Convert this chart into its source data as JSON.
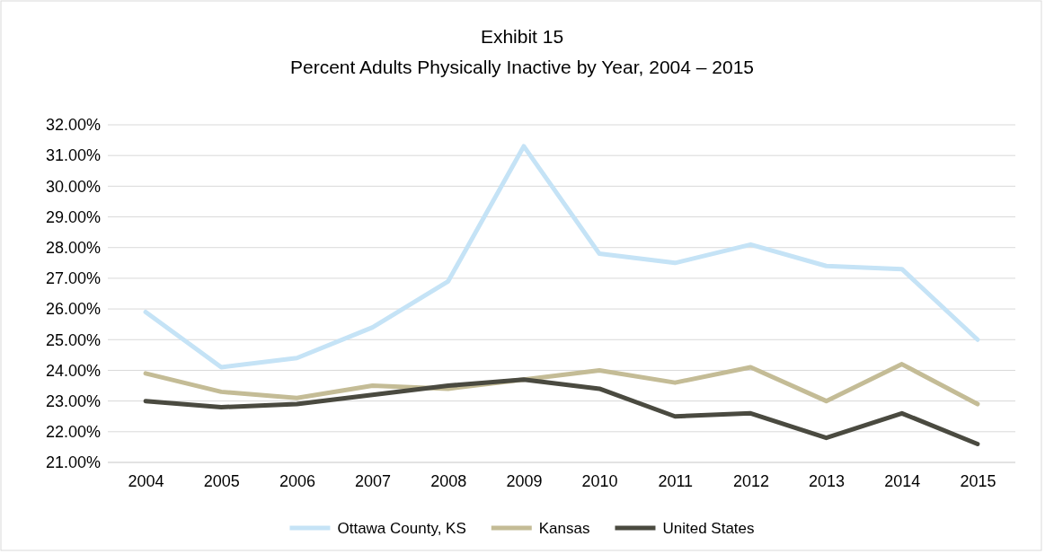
{
  "chart_data": {
    "type": "line",
    "title": "Exhibit 15",
    "subtitle": "Percent Adults Physically Inactive by Year, 2004 – 2015",
    "categories": [
      "2004",
      "2005",
      "2006",
      "2007",
      "2008",
      "2009",
      "2010",
      "2011",
      "2012",
      "2013",
      "2014",
      "2015"
    ],
    "series": [
      {
        "name": "Ottawa County, KS",
        "color": "#c5e3f6",
        "values": [
          25.9,
          24.1,
          24.4,
          25.4,
          26.9,
          31.3,
          27.8,
          27.5,
          28.1,
          27.4,
          27.3,
          25.0
        ]
      },
      {
        "name": "Kansas",
        "color": "#c4bc96",
        "values": [
          23.9,
          23.3,
          23.1,
          23.5,
          23.4,
          23.7,
          24.0,
          23.6,
          24.1,
          23.0,
          24.2,
          22.9
        ]
      },
      {
        "name": "United States",
        "color": "#4a4a40",
        "values": [
          23.0,
          22.8,
          22.9,
          23.2,
          23.5,
          23.7,
          23.4,
          22.5,
          22.6,
          21.8,
          22.6,
          21.6
        ]
      }
    ],
    "ylim": [
      21,
      32
    ],
    "yticks": [
      {
        "value": 21,
        "label": "21.00%"
      },
      {
        "value": 22,
        "label": "22.00%"
      },
      {
        "value": 23,
        "label": "23.00%"
      },
      {
        "value": 24,
        "label": "24.00%"
      },
      {
        "value": 25,
        "label": "25.00%"
      },
      {
        "value": 26,
        "label": "26.00%"
      },
      {
        "value": 27,
        "label": "27.00%"
      },
      {
        "value": 28,
        "label": "28.00%"
      },
      {
        "value": 29,
        "label": "29.00%"
      },
      {
        "value": 30,
        "label": "30.00%"
      },
      {
        "value": 31,
        "label": "31.00%"
      },
      {
        "value": 32,
        "label": "32.00%"
      }
    ],
    "grid": "y",
    "legend": "bottom",
    "marker": "none",
    "line_style": "solid"
  }
}
